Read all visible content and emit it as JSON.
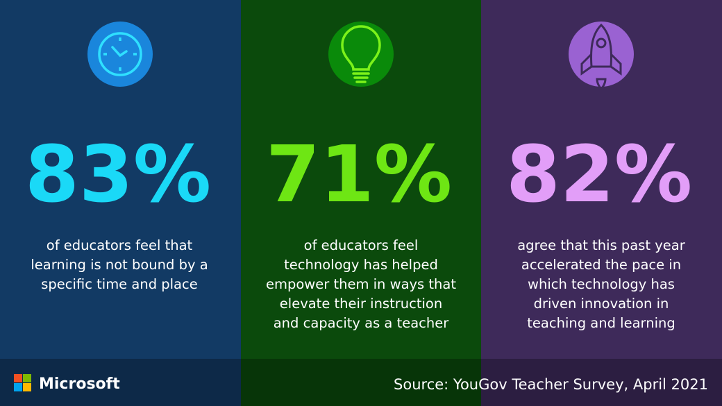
{
  "panels": [
    {
      "stat": "83%",
      "description": [
        "of educators feel that",
        "learning is not bound by a",
        "specific time and place"
      ]
    },
    {
      "stat": "71%",
      "description": [
        "of educators feel",
        "technology has helped",
        "empower them in ways that",
        "elevate their instruction",
        "and capacity as a teacher"
      ]
    },
    {
      "stat": "82%",
      "description": [
        "agree that this past year",
        "accelerated the pace in",
        "which technology has",
        "driven innovation in",
        "teaching and learning"
      ]
    }
  ],
  "footer": {
    "brand": "Microsoft",
    "source": "Source: YouGov Teacher Survey, April 2021"
  }
}
